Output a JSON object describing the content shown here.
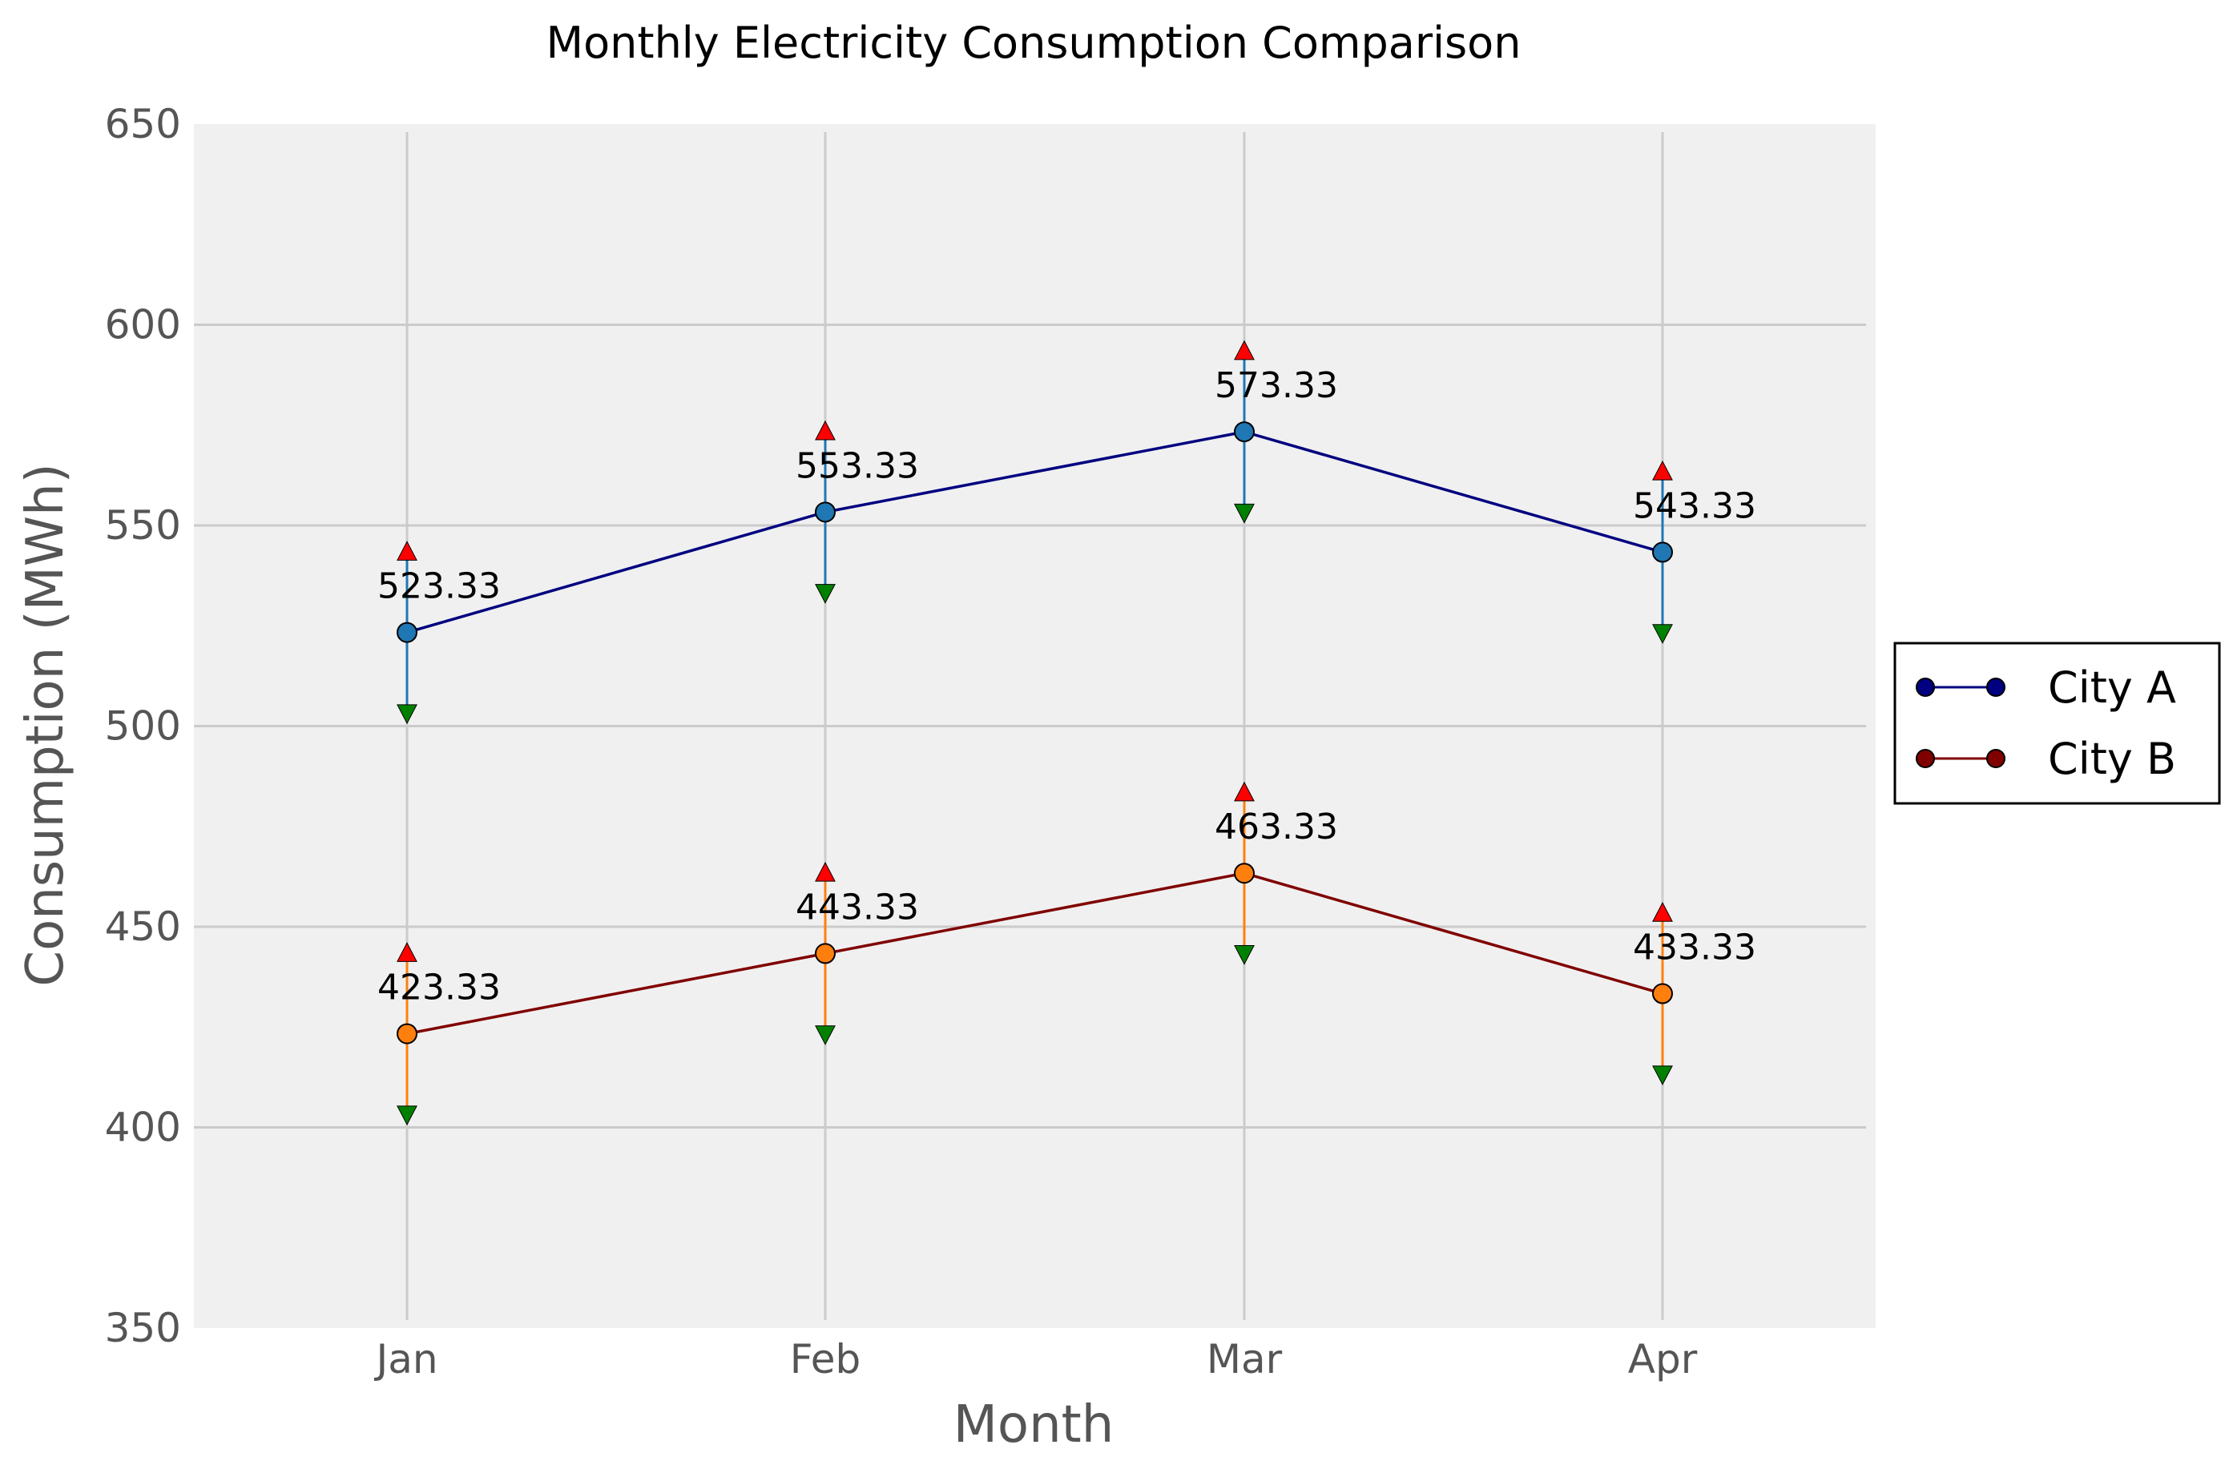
{
  "chart_data": {
    "type": "line",
    "title": "Monthly Electricity Consumption Comparison",
    "xlabel": "Month",
    "ylabel": "Consumption (MWh)",
    "categories": [
      "Jan",
      "Feb",
      "Mar",
      "Apr"
    ],
    "ylim": [
      350,
      650
    ],
    "yticks": [
      350,
      400,
      450,
      500,
      550,
      600,
      650
    ],
    "grid": true,
    "legend_position": "right",
    "series": [
      {
        "name": "City A",
        "values": [
          523.33,
          553.33,
          573.33,
          543.33
        ],
        "upper": [
          543.33,
          573.33,
          593.33,
          563.33
        ],
        "lower": [
          503.33,
          533.33,
          553.33,
          523.33
        ],
        "labels": [
          "523.33",
          "553.33",
          "573.33",
          "543.33"
        ],
        "line_color": "#000080",
        "marker_color": "#1f77b4",
        "range_color": "#1f77b4",
        "legend_marker_color": "#000080"
      },
      {
        "name": "City B",
        "values": [
          423.33,
          443.33,
          463.33,
          433.33
        ],
        "upper": [
          443.33,
          463.33,
          483.33,
          453.33
        ],
        "lower": [
          403.33,
          423.33,
          443.33,
          413.33
        ],
        "labels": [
          "423.33",
          "443.33",
          "463.33",
          "433.33"
        ],
        "line_color": "#800000",
        "marker_color": "#ff7f0e",
        "range_color": "#ff7f0e",
        "legend_marker_color": "#800000"
      }
    ],
    "colors": {
      "plot_background": "#f0f0f0",
      "grid": "#cbcbcb",
      "upper_marker": "#ff0000",
      "lower_marker": "#008000"
    }
  }
}
